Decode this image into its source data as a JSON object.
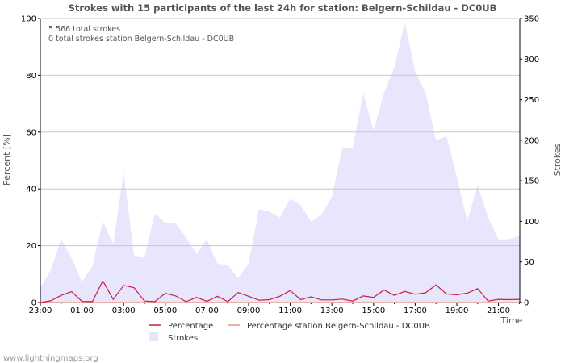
{
  "chart_data": {
    "type": "area",
    "title": "Strokes with 15 participants of the last 24h for station: Belgern-Schildau - DC0UB",
    "ylabel_left": "Percent   [%]",
    "ylabel_right": "Strokes",
    "xlabel": "Time",
    "ylim_left": [
      0,
      100
    ],
    "ylim_right": [
      0,
      350
    ],
    "yticks_left": [
      "0",
      "20",
      "40",
      "60",
      "80",
      "100"
    ],
    "yticks_right": [
      "0",
      "50",
      "100",
      "150",
      "200",
      "250",
      "300",
      "350"
    ],
    "xticks": [
      "23:00",
      "01:00",
      "03:00",
      "05:00",
      "07:00",
      "09:00",
      "11:00",
      "13:00",
      "15:00",
      "17:00",
      "19:00",
      "21:00"
    ],
    "grid": true,
    "annotations": [
      "5.566 total strokes",
      "0 total strokes station Belgern-Schildau - DC0UB"
    ],
    "legend": [
      "Percentage",
      "Percentage station Belgern-Schildau - DC0UB",
      "Strokes"
    ],
    "legend_position": "bottom",
    "footer": "www.lightningmaps.org",
    "colors": {
      "strokes_fill": "#e8e6fd",
      "percentage": "#cc1f45",
      "percentage_station": "#e8927c",
      "grid": "#c8c8c8",
      "axis": "#000000"
    },
    "x_hours": [
      0,
      0.5,
      1,
      1.5,
      2,
      2.5,
      3,
      3.5,
      4,
      4.5,
      5,
      5.5,
      6,
      6.5,
      7,
      7.5,
      8,
      8.5,
      9,
      9.5,
      10,
      10.5,
      11,
      11.5,
      12,
      12.5,
      13,
      13.5,
      14,
      14.5,
      15,
      15.5,
      16,
      16.5,
      17,
      17.5,
      18,
      18.5,
      19,
      19.5,
      20,
      20.5,
      21,
      21.5,
      22,
      22.5,
      23
    ],
    "series": [
      {
        "name": "Strokes",
        "axis": "right",
        "values": [
          18,
          40,
          78,
          55,
          25,
          45,
          100,
          72,
          160,
          58,
          56,
          110,
          98,
          97,
          80,
          60,
          78,
          48,
          46,
          30,
          48,
          115,
          112,
          105,
          128,
          120,
          100,
          108,
          130,
          190,
          190,
          258,
          212,
          258,
          290,
          345,
          285,
          258,
          200,
          205,
          155,
          100,
          145,
          105,
          78,
          78,
          82
        ]
      },
      {
        "name": "Percentage",
        "axis": "left",
        "values": [
          0,
          0.6,
          2.5,
          3.8,
          0.4,
          0.3,
          7.6,
          1.1,
          6,
          5.2,
          0.5,
          0.3,
          3.2,
          2.3,
          0.3,
          1.8,
          0.4,
          2.2,
          0.3,
          3.5,
          2.2,
          0.8,
          1,
          2.2,
          4.2,
          1,
          2,
          0.9,
          0.9,
          1.2,
          0.5,
          2.3,
          1.8,
          4.4,
          2.5,
          3.9,
          2.9,
          3.4,
          6.2,
          3,
          2.7,
          3.3,
          4.9,
          0.5,
          1.1,
          1,
          1.1
        ]
      },
      {
        "name": "Percentage station Belgern-Schildau - DC0UB",
        "axis": "left",
        "values": [
          0,
          0,
          0,
          0,
          0,
          0,
          0,
          0,
          0,
          0,
          0,
          0,
          0,
          0,
          0,
          0,
          0,
          0,
          0,
          0,
          0,
          0,
          0,
          0,
          0,
          0,
          0,
          0,
          0,
          0,
          0,
          0,
          0,
          0,
          0,
          0,
          0,
          0,
          0,
          0,
          0,
          0,
          0,
          0,
          0,
          0,
          0
        ]
      }
    ]
  }
}
